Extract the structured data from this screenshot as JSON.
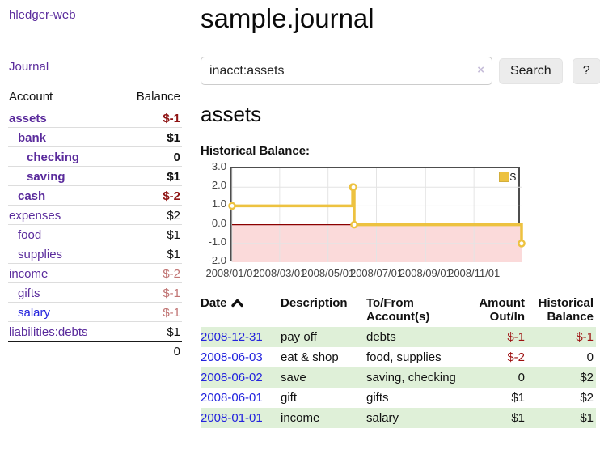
{
  "colors": {
    "accent_purple": "#5a2b9c",
    "link_blue": "#2323dd",
    "negative_dark": "#8f1414",
    "negative_soft": "#c17473",
    "register_negative": "#9e1212",
    "row_stripe_green": "#dff0d8",
    "series_yellow": "#edc240",
    "negative_region_pink": "#fbdada",
    "zero_line_red": "#8b0000"
  },
  "sidebar": {
    "brand": "hledger-web",
    "nav_journal": "Journal",
    "accounts_header": {
      "account": "Account",
      "balance": "Balance"
    },
    "accounts": [
      {
        "name": "assets",
        "indent": 1,
        "bold": true,
        "link_color": "#5a2b9c",
        "balance": "$-1",
        "balance_color": "#8f1414"
      },
      {
        "name": "bank",
        "indent": 2,
        "bold": true,
        "link_color": "#5a2b9c",
        "balance": "$1",
        "balance_color": "#111111"
      },
      {
        "name": "checking",
        "indent": 3,
        "bold": true,
        "link_color": "#5a2b9c",
        "balance": "0",
        "balance_color": "#111111"
      },
      {
        "name": "saving",
        "indent": 3,
        "bold": true,
        "link_color": "#5a2b9c",
        "balance": "$1",
        "balance_color": "#111111"
      },
      {
        "name": "cash",
        "indent": 2,
        "bold": true,
        "link_color": "#5a2b9c",
        "balance": "$-2",
        "balance_color": "#8f1414"
      },
      {
        "name": "expenses",
        "indent": 1,
        "bold": false,
        "link_color": "#5a2b9c",
        "balance": "$2",
        "balance_color": "#111111"
      },
      {
        "name": "food",
        "indent": 2,
        "bold": false,
        "link_color": "#5a2b9c",
        "balance": "$1",
        "balance_color": "#111111"
      },
      {
        "name": "supplies",
        "indent": 2,
        "bold": false,
        "link_color": "#5a2b9c",
        "balance": "$1",
        "balance_color": "#111111"
      },
      {
        "name": "income",
        "indent": 1,
        "bold": false,
        "link_color": "#5a2b9c",
        "balance": "$-2",
        "balance_color": "#c17473"
      },
      {
        "name": "gifts",
        "indent": 2,
        "bold": false,
        "link_color": "#5a2b9c",
        "balance": "$-1",
        "balance_color": "#c17473"
      },
      {
        "name": "salary",
        "indent": 2,
        "bold": false,
        "link_color": "#2323dd",
        "balance": "$-1",
        "balance_color": "#c17473"
      },
      {
        "name": "liabilities:debts",
        "indent": 1,
        "bold": false,
        "link_color": "#5a2b9c",
        "balance": "$1",
        "balance_color": "#111111"
      }
    ],
    "total": "0"
  },
  "main": {
    "title": "sample.journal",
    "search": {
      "value": "inacct:assets",
      "clear_icon": "×",
      "button_label": "Search",
      "help_label": "?"
    },
    "account_heading": "assets",
    "chart_label": "Historical Balance:"
  },
  "chart_data": {
    "type": "line",
    "title": "Historical Balance:",
    "style": "step",
    "series": [
      {
        "name": "$",
        "color": "#edc240",
        "points": [
          [
            "2008-01-01",
            1
          ],
          [
            "2008-06-01",
            2
          ],
          [
            "2008-06-02",
            2
          ],
          [
            "2008-06-03",
            0
          ],
          [
            "2008-12-31",
            -1
          ]
        ]
      }
    ],
    "x_range": [
      "2008-01-01",
      "2008-12-31"
    ],
    "y_range": [
      -2,
      3
    ],
    "x_ticks": [
      {
        "date": "2008-01-01",
        "label": "2008/01/01"
      },
      {
        "date": "2008-03-01",
        "label": "2008/03/01"
      },
      {
        "date": "2008-05-01",
        "label": "2008/05/01"
      },
      {
        "date": "2008-07-01",
        "label": "2008/07/01"
      },
      {
        "date": "2008-09-01",
        "label": "2008/09/01"
      },
      {
        "date": "2008-11-01",
        "label": "2008/11/01"
      }
    ],
    "y_ticks": [
      {
        "value": 3,
        "label": "3.0"
      },
      {
        "value": 2,
        "label": "2.0"
      },
      {
        "value": 1,
        "label": "1.0"
      },
      {
        "value": 0,
        "label": "0.0"
      },
      {
        "value": -1,
        "label": "-1.0"
      },
      {
        "value": -2,
        "label": "-2.0"
      }
    ],
    "grid": true,
    "legend": {
      "position": "top-right",
      "label": "$",
      "swatch_color": "#edc240"
    },
    "negative_region": {
      "from": 0,
      "to": -2,
      "color": "#fbdada",
      "zero_line_color": "#8b0000"
    }
  },
  "register": {
    "headers": {
      "date": "Date",
      "description": "Description",
      "accounts": "To/From Account(s)",
      "amount": "Amount Out/In",
      "balance": "Historical Balance"
    },
    "rows": [
      {
        "date": "2008-12-31",
        "description": "pay off",
        "accounts": "debts",
        "amount": "$-1",
        "balance": "$-1"
      },
      {
        "date": "2008-06-03",
        "description": "eat & shop",
        "accounts": "food, supplies",
        "amount": "$-2",
        "balance": "0"
      },
      {
        "date": "2008-06-02",
        "description": "save",
        "accounts": "saving, checking",
        "amount": "0",
        "balance": "$2"
      },
      {
        "date": "2008-06-01",
        "description": "gift",
        "accounts": "gifts",
        "amount": "$1",
        "balance": "$2"
      },
      {
        "date": "2008-01-01",
        "description": "income",
        "accounts": "salary",
        "amount": "$1",
        "balance": "$1"
      }
    ]
  }
}
